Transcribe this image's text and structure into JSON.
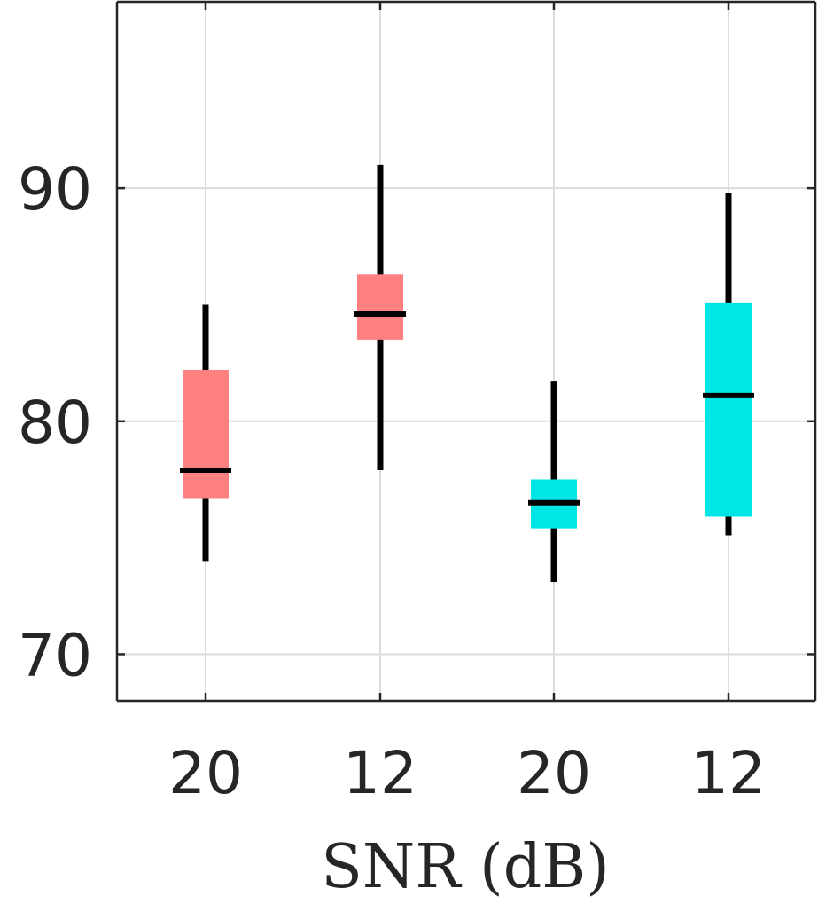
{
  "chart_data": {
    "type": "box",
    "title": "",
    "xlabel": "SNR (dB)",
    "ylabel": "",
    "categories": [
      "20",
      "12",
      "20",
      "12"
    ],
    "ylim": [
      68,
      98
    ],
    "yticks": [
      70,
      80,
      90
    ],
    "grid": true,
    "boxes": [
      {
        "category": "20",
        "whisker_low": 74.0,
        "q1": 76.7,
        "median": 77.9,
        "q3": 82.2,
        "whisker_high": 85.0,
        "color": "#ff8080"
      },
      {
        "category": "12",
        "whisker_low": 77.9,
        "q1": 83.5,
        "median": 84.6,
        "q3": 86.3,
        "whisker_high": 91.0,
        "color": "#ff8080"
      },
      {
        "category": "20",
        "whisker_low": 73.1,
        "q1": 75.4,
        "median": 76.5,
        "q3": 77.5,
        "whisker_high": 81.7,
        "color": "#00e5e5"
      },
      {
        "category": "12",
        "whisker_low": 75.1,
        "q1": 75.9,
        "median": 81.1,
        "q3": 85.1,
        "whisker_high": 89.8,
        "color": "#00e5e5"
      }
    ]
  }
}
